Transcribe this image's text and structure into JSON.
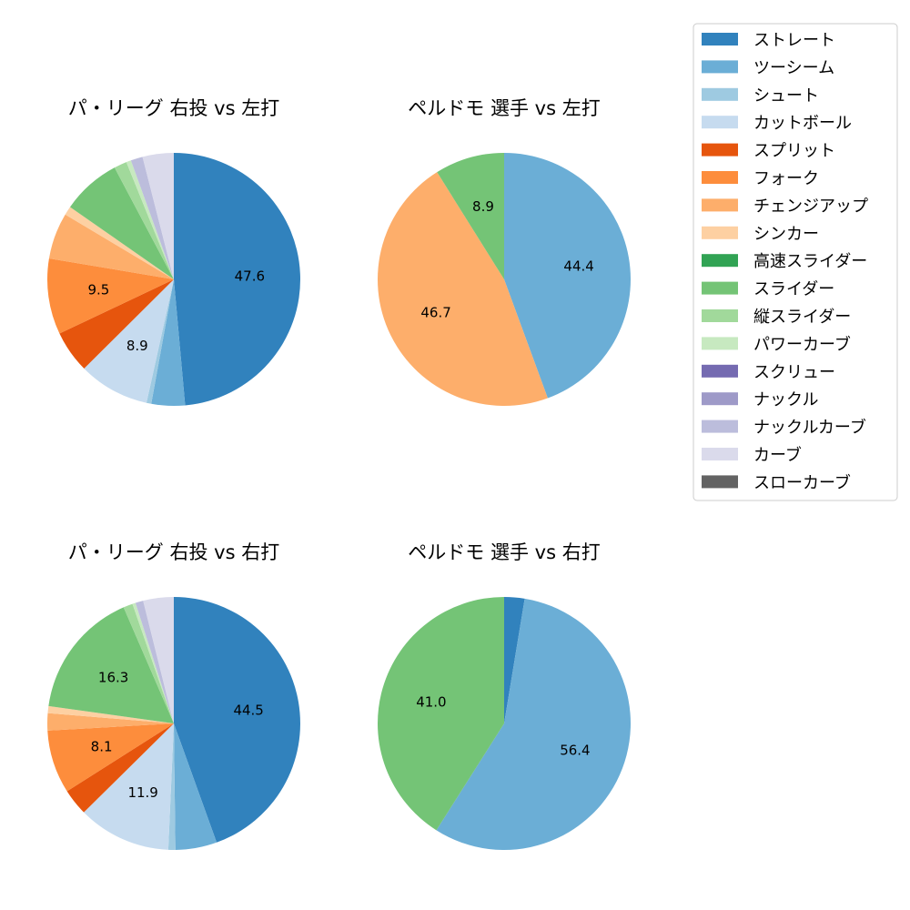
{
  "colors": {
    "ストレート": "#3182bd",
    "ツーシーム": "#6baed6",
    "シュート": "#9ecae1",
    "カットボール": "#c6dbef",
    "スプリット": "#e6550d",
    "フォーク": "#fd8d3c",
    "チェンジアップ": "#fdae6b",
    "シンカー": "#fdd0a2",
    "高速スライダー": "#31a354",
    "スライダー": "#74c476",
    "縦スライダー": "#a1d99b",
    "パワーカーブ": "#c7e9c0",
    "スクリュー": "#756bb1",
    "ナックル": "#9e9ac8",
    "ナックルカーブ": "#bcbddc",
    "カーブ": "#dadaeb",
    "スローカーブ": "#636363"
  },
  "legend": {
    "entries": [
      "ストレート",
      "ツーシーム",
      "シュート",
      "カットボール",
      "スプリット",
      "フォーク",
      "チェンジアップ",
      "シンカー",
      "高速スライダー",
      "スライダー",
      "縦スライダー",
      "パワーカーブ",
      "スクリュー",
      "ナックル",
      "ナックルカーブ",
      "カーブ",
      "スローカーブ"
    ]
  },
  "chart_data": [
    {
      "type": "pie",
      "title": "パ・リーグ 右投 vs 左打",
      "slices": [
        {
          "name": "ストレート",
          "value": 47.6,
          "label": "47.6"
        },
        {
          "name": "ツーシーム",
          "value": 4.2,
          "label": ""
        },
        {
          "name": "シュート",
          "value": 0.6,
          "label": ""
        },
        {
          "name": "カットボール",
          "value": 8.9,
          "label": "8.9"
        },
        {
          "name": "スプリット",
          "value": 5.3,
          "label": ""
        },
        {
          "name": "フォーク",
          "value": 9.5,
          "label": "9.5"
        },
        {
          "name": "チェンジアップ",
          "value": 5.8,
          "label": ""
        },
        {
          "name": "シンカー",
          "value": 1.1,
          "label": ""
        },
        {
          "name": "スライダー",
          "value": 7.4,
          "label": ""
        },
        {
          "name": "縦スライダー",
          "value": 1.6,
          "label": ""
        },
        {
          "name": "パワーカーブ",
          "value": 0.6,
          "label": ""
        },
        {
          "name": "ナックルカーブ",
          "value": 1.5,
          "label": ""
        },
        {
          "name": "カーブ",
          "value": 3.9,
          "label": ""
        }
      ]
    },
    {
      "type": "pie",
      "title": "ペルドモ 選手 vs 左打",
      "slices": [
        {
          "name": "ツーシーム",
          "value": 44.4,
          "label": "44.4"
        },
        {
          "name": "チェンジアップ",
          "value": 46.7,
          "label": "46.7"
        },
        {
          "name": "スライダー",
          "value": 8.9,
          "label": "8.9"
        }
      ]
    },
    {
      "type": "pie",
      "title": "パ・リーグ 右投 vs 右打",
      "slices": [
        {
          "name": "ストレート",
          "value": 44.5,
          "label": "44.5"
        },
        {
          "name": "ツーシーム",
          "value": 5.3,
          "label": ""
        },
        {
          "name": "シュート",
          "value": 0.9,
          "label": ""
        },
        {
          "name": "カットボール",
          "value": 11.9,
          "label": "11.9"
        },
        {
          "name": "スプリット",
          "value": 3.4,
          "label": ""
        },
        {
          "name": "フォーク",
          "value": 8.1,
          "label": "8.1"
        },
        {
          "name": "チェンジアップ",
          "value": 2.2,
          "label": ""
        },
        {
          "name": "シンカー",
          "value": 0.9,
          "label": ""
        },
        {
          "name": "スライダー",
          "value": 16.3,
          "label": "16.3"
        },
        {
          "name": "縦スライダー",
          "value": 1.2,
          "label": ""
        },
        {
          "name": "パワーカーブ",
          "value": 0.4,
          "label": ""
        },
        {
          "name": "ナックルカーブ",
          "value": 1.0,
          "label": ""
        },
        {
          "name": "カーブ",
          "value": 3.9,
          "label": ""
        }
      ]
    },
    {
      "type": "pie",
      "title": "ペルドモ 選手 vs 右打",
      "slices": [
        {
          "name": "ストレート",
          "value": 2.6,
          "label": ""
        },
        {
          "name": "ツーシーム",
          "value": 56.4,
          "label": "56.4"
        },
        {
          "name": "スライダー",
          "value": 41.0,
          "label": "41.0"
        }
      ]
    }
  ]
}
